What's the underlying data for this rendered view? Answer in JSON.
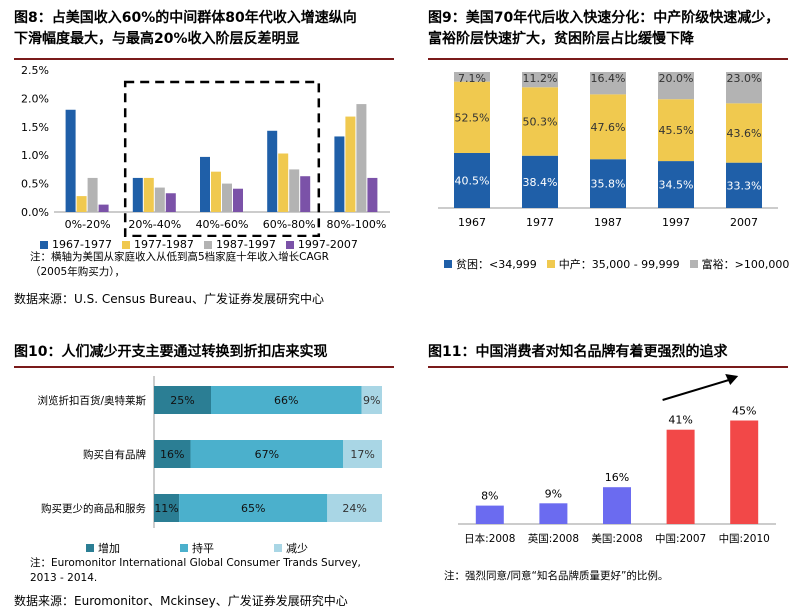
{
  "fig8": {
    "title_line1": "图8：占美国收入60%的中间群体80年代收入增速纵向",
    "title_line2": "下滑幅度最大，与最高20%收入阶层反差明显",
    "legend": [
      "1967-1977",
      "1977-1987",
      "1987-1997",
      "1997-2007"
    ],
    "colors": [
      "#1f5fa8",
      "#f0c94f",
      "#b3b3b3",
      "#7b52a8"
    ],
    "note_line1": "注：横轴为美国从家庭收入从低到高5档家庭十年收入增长CAGR",
    "note_line2": "（2005年购买力），",
    "source": "数据来源：U.S. Census Bureau、广发证券发展研究中心"
  },
  "fig9": {
    "title_line1": "图9：美国70年代后收入快速分化：中产阶级快速减少，",
    "title_line2": "富裕阶层快速扩大，贫困阶层占比缓慢下降",
    "legend": [
      "贫困：<34,999",
      "中产：35,000 - 99,999",
      "富裕：>100,000"
    ],
    "colors": [
      "#1f5fa8",
      "#f0c94f",
      "#b3b3b3"
    ]
  },
  "fig10": {
    "title": "图10：人们减少开支主要通过转换到折扣店来实现",
    "legend": [
      "增加",
      "持平",
      "减少"
    ],
    "colors": [
      "#2b7e94",
      "#4bb0cc",
      "#a9d6e5"
    ],
    "note_line1": "注：Euromonitor International Global Consumer Trands Survey,",
    "note_line2": "2013 - 2014.",
    "source": "数据来源：Euromonitor、Mckinsey、广发证券发展研究中心"
  },
  "fig11": {
    "title": "图11：中国消费者对知名品牌有着更强烈的追求",
    "note": "注：强烈同意/同意“知名品牌质量更好”的比例。",
    "colors": [
      "#6b6bf0",
      "#f24848"
    ]
  },
  "chart_data": [
    {
      "type": "bar",
      "categories": [
        "0%-20%",
        "20%-40%",
        "40%-60%",
        "60%-80%",
        "80%-100%"
      ],
      "series": [
        {
          "name": "1967-1977",
          "values": [
            1.8,
            0.6,
            0.97,
            1.43,
            1.33
          ]
        },
        {
          "name": "1977-1987",
          "values": [
            0.28,
            0.6,
            0.71,
            1.03,
            1.68
          ]
        },
        {
          "name": "1987-1997",
          "values": [
            0.6,
            0.43,
            0.5,
            0.75,
            1.9
          ]
        },
        {
          "name": "1997-2007",
          "values": [
            0.13,
            0.33,
            0.41,
            0.63,
            0.6
          ]
        }
      ],
      "yticks": [
        "0.0%",
        "0.5%",
        "1.0%",
        "1.5%",
        "2.0%",
        "2.5%"
      ],
      "ylim": [
        0,
        2.5
      ],
      "legend_position": "bottom"
    },
    {
      "type": "bar",
      "stacked": true,
      "categories": [
        "1967",
        "1977",
        "1987",
        "1997",
        "2007"
      ],
      "series": [
        {
          "name": "贫困：<34,999",
          "values": [
            40.5,
            38.4,
            35.8,
            34.5,
            33.3
          ]
        },
        {
          "name": "中产：35,000 - 99,999",
          "values": [
            52.5,
            50.3,
            47.6,
            45.5,
            43.6
          ]
        },
        {
          "name": "富裕：>100,000",
          "values": [
            7.1,
            11.2,
            16.4,
            20.0,
            23.0
          ]
        }
      ],
      "labels": [
        [
          "40.5%",
          "38.4%",
          "35.8%",
          "34.5%",
          "33.3%"
        ],
        [
          "52.5%",
          "50.3%",
          "47.6%",
          "45.5%",
          "43.6%"
        ],
        [
          "7.1%",
          "11.2%",
          "16.4%",
          "20.0%",
          "23.0%"
        ]
      ],
      "legend_position": "bottom"
    },
    {
      "type": "bar",
      "orientation": "horizontal",
      "stacked": true,
      "categories": [
        "浏览折扣百货/奥特莱斯",
        "购买自有品牌",
        "购买更少的商品和服务"
      ],
      "series": [
        {
          "name": "增加",
          "values": [
            25,
            16,
            11
          ]
        },
        {
          "name": "持平",
          "values": [
            66,
            67,
            65
          ]
        },
        {
          "name": "减少",
          "values": [
            9,
            17,
            24
          ]
        }
      ],
      "legend_position": "bottom"
    },
    {
      "type": "bar",
      "categories": [
        "日本:2008",
        "英国:2008",
        "美国:2008",
        "中国:2007",
        "中国:2010"
      ],
      "values": [
        8,
        9,
        16,
        41,
        45
      ],
      "labels": [
        "8%",
        "9%",
        "16%",
        "41%",
        "45%"
      ]
    }
  ]
}
